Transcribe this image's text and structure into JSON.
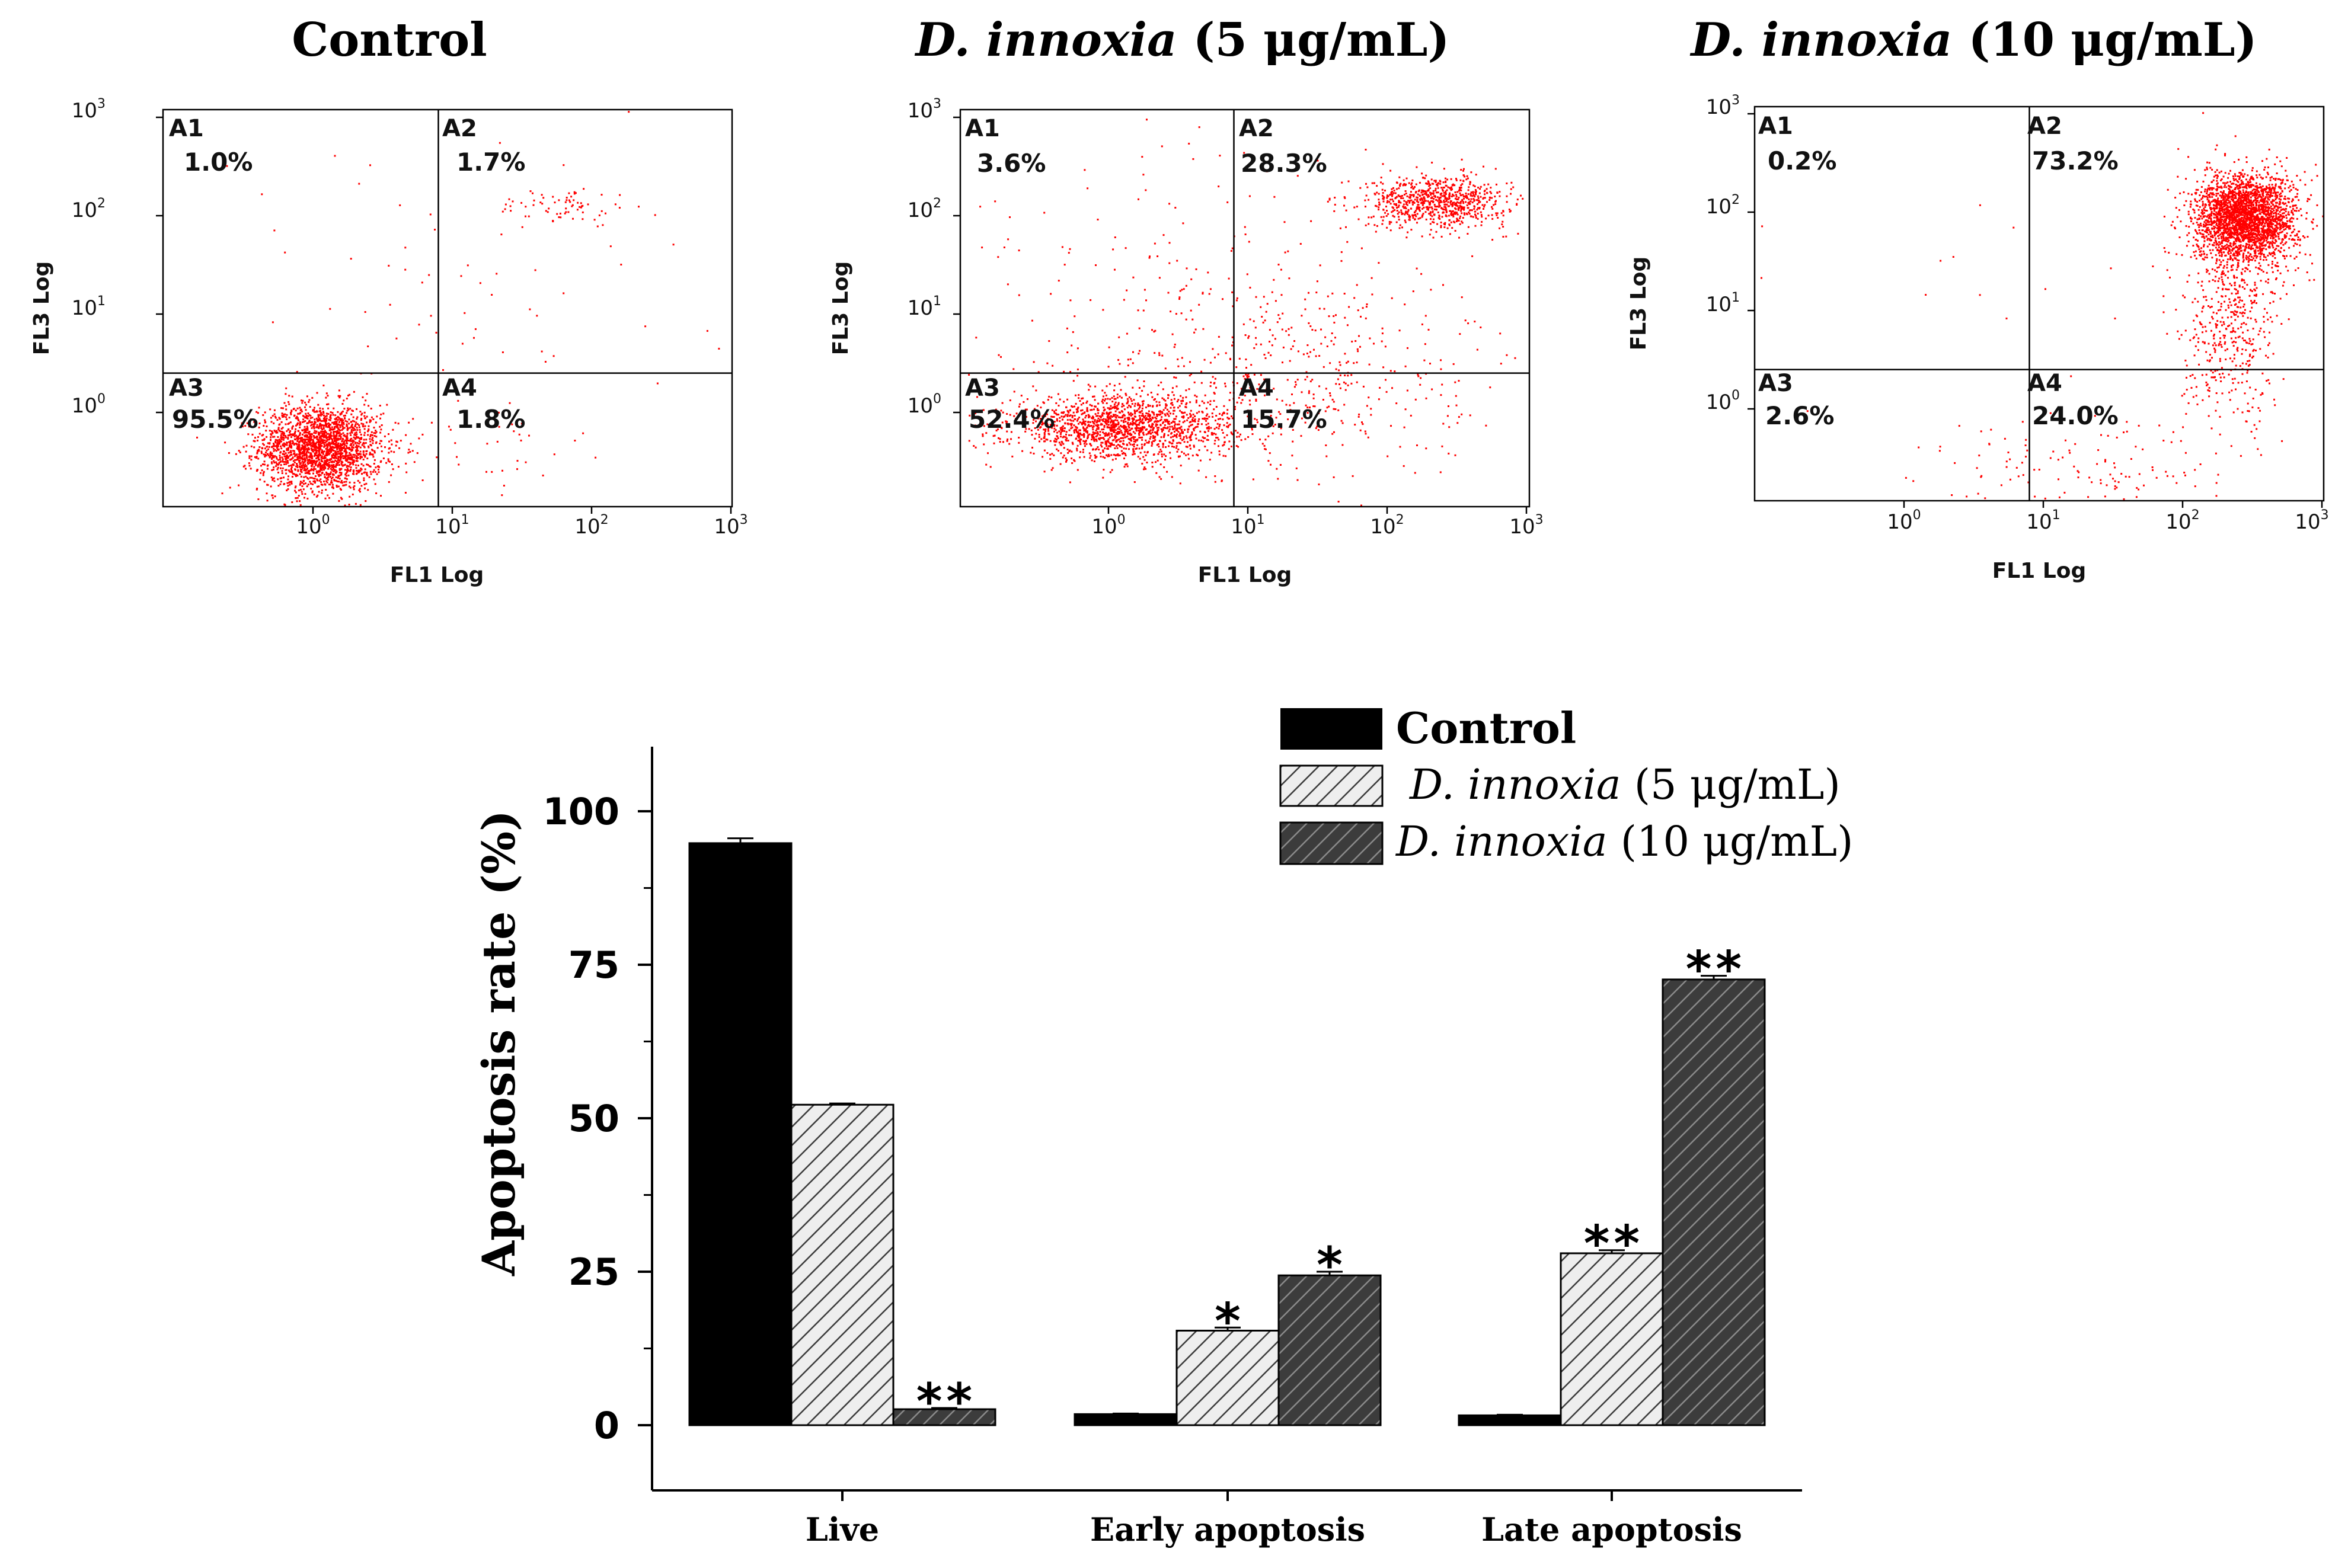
{
  "chart_data": [
    {
      "type": "scatter",
      "title": "Control",
      "xlabel": "FL1 Log",
      "ylabel": "FL3 Log",
      "x_ticks": [
        "10^0",
        "10^1",
        "10^2",
        "10^3"
      ],
      "y_ticks": [
        "10^0",
        "10^1",
        "10^2",
        "10^3"
      ],
      "quadrants": [
        {
          "name": "A1",
          "value": "1.0%"
        },
        {
          "name": "A2",
          "value": "1.7%"
        },
        {
          "name": "A3",
          "value": "95.5%"
        },
        {
          "name": "A4",
          "value": "1.8%"
        }
      ],
      "gate_log": {
        "x": 0.9,
        "y": 0.4
      },
      "point_color": "#ff0000"
    },
    {
      "type": "scatter",
      "title_italic": "D. innoxia",
      "title_rest": " (5 μg/mL)",
      "xlabel": "FL1 Log",
      "ylabel": "FL3 Log",
      "x_ticks": [
        "10^0",
        "10^1",
        "10^2",
        "10^3"
      ],
      "y_ticks": [
        "10^0",
        "10^1",
        "10^2",
        "10^3"
      ],
      "quadrants": [
        {
          "name": "A1",
          "value": "3.6%"
        },
        {
          "name": "A2",
          "value": "28.3%"
        },
        {
          "name": "A3",
          "value": "52.4%"
        },
        {
          "name": "A4",
          "value": "15.7%"
        }
      ],
      "gate_log": {
        "x": 0.9,
        "y": 0.4
      },
      "point_color": "#ff0000"
    },
    {
      "type": "scatter",
      "title_italic": "D. innoxia",
      "title_rest": " (10 μg/mL)",
      "xlabel": "FL1 Log",
      "ylabel": "FL3 Log",
      "x_ticks": [
        "10^0",
        "10^1",
        "10^2",
        "10^3"
      ],
      "y_ticks": [
        "10^0",
        "10^1",
        "10^2",
        "10^3"
      ],
      "quadrants": [
        {
          "name": "A1",
          "value": "0.2%"
        },
        {
          "name": "A2",
          "value": "73.2%"
        },
        {
          "name": "A3",
          "value": "2.6%"
        },
        {
          "name": "A4",
          "value": "24.0%"
        }
      ],
      "gate_log": {
        "x": 0.9,
        "y": 0.4
      },
      "point_color": "#ff0000"
    },
    {
      "type": "bar",
      "ylabel": "Apoptosis rate (%)",
      "ylim": [
        -10,
        110
      ],
      "yticks": [
        "0",
        "25",
        "50",
        "75",
        "100"
      ],
      "categories": [
        "Live",
        "Early apoptosis",
        "Late apoptosis"
      ],
      "series": [
        {
          "name": "Control",
          "values": [
            94.8,
            1.8,
            1.6
          ],
          "errors": [
            0.8,
            0.1,
            0.1
          ],
          "color": "#000000",
          "pattern": "solid"
        },
        {
          "name_italic": "D. innoxia",
          "name_rest": " (5 μg/mL)",
          "values": [
            52.2,
            15.4,
            28.0
          ],
          "errors": [
            0.2,
            0.5,
            0.5
          ],
          "color": "#d8d8d8",
          "pattern": "light-hatch"
        },
        {
          "name_italic": "D. innoxia",
          "name_rest": " (10 μg/mL)",
          "values": [
            2.6,
            24.4,
            72.6
          ],
          "errors": [
            0.2,
            0.6,
            0.6
          ],
          "color": "#555555",
          "pattern": "dark-hatch"
        }
      ],
      "significance": [
        [
          "",
          "",
          "**"
        ],
        [
          "",
          "*",
          "*"
        ],
        [
          "",
          "**",
          "**"
        ]
      ],
      "legend_position": "top-right"
    }
  ]
}
